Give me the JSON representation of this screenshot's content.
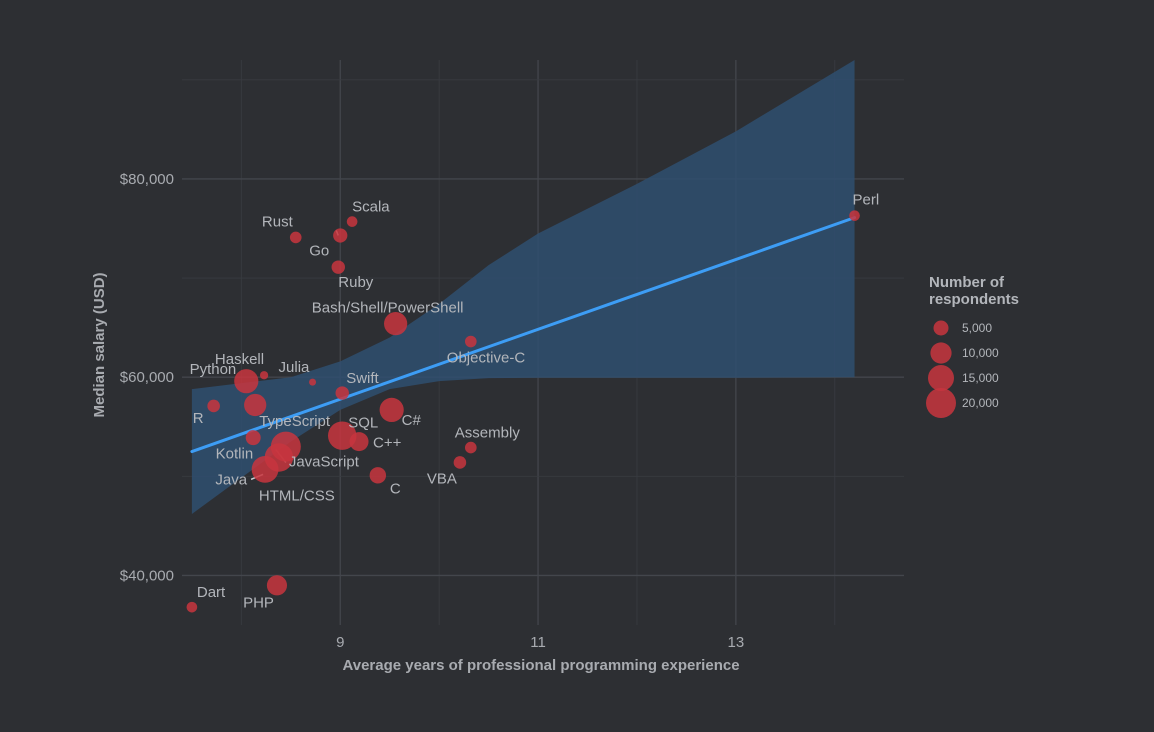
{
  "chart_data": {
    "type": "scatter",
    "title": "",
    "xlabel": "Average years of professional programming experience",
    "ylabel": "Median salary (USD)",
    "xlim": [
      7.4,
      14.7
    ],
    "ylim": [
      35000,
      92000
    ],
    "x_ticks": [
      9,
      11,
      13
    ],
    "x_tick_labels": [
      "9",
      "11",
      "13"
    ],
    "y_ticks": [
      40000,
      60000,
      80000
    ],
    "y_tick_labels": [
      "$40,000",
      "$60,000",
      "$80,000"
    ],
    "grid": true,
    "legend_position": "right",
    "legend": {
      "title": "Number of respondents",
      "entries": [
        {
          "label": "5,000",
          "value": 5000
        },
        {
          "label": "10,000",
          "value": 10000
        },
        {
          "label": "15,000",
          "value": 15000
        },
        {
          "label": "20,000",
          "value": 20000
        }
      ]
    },
    "colors": {
      "point": "#c8353e",
      "trend_line": "#3d9df5",
      "confidence_band": "#2f4f70",
      "background": "#2d2f33",
      "text": "#a8abb0"
    },
    "points": [
      {
        "label": "Perl",
        "x": 14.2,
        "y": 76300,
        "respondents": 2500
      },
      {
        "label": "Scala",
        "x": 9.12,
        "y": 75700,
        "respondents": 2500
      },
      {
        "label": "Go",
        "x": 9.0,
        "y": 74300,
        "respondents": 4500
      },
      {
        "label": "Rust",
        "x": 8.55,
        "y": 74100,
        "respondents": 3000
      },
      {
        "label": "Ruby",
        "x": 8.98,
        "y": 71100,
        "respondents": 4000
      },
      {
        "label": "Bash/Shell/PowerShell",
        "x": 9.56,
        "y": 65400,
        "respondents": 12000
      },
      {
        "label": "Objective-C",
        "x": 10.32,
        "y": 63600,
        "respondents": 3000
      },
      {
        "label": "Haskell",
        "x": 8.23,
        "y": 60200,
        "respondents": 1500
      },
      {
        "label": "Julia",
        "x": 8.72,
        "y": 59500,
        "respondents": 800
      },
      {
        "label": "Swift",
        "x": 9.02,
        "y": 58400,
        "respondents": 4000
      },
      {
        "label": "Python",
        "x": 8.05,
        "y": 59600,
        "respondents": 13000
      },
      {
        "label": "R",
        "x": 7.72,
        "y": 57100,
        "respondents": 3500
      },
      {
        "label": "TypeScript",
        "x": 8.14,
        "y": 57200,
        "respondents": 11000
      },
      {
        "label": "C#",
        "x": 9.52,
        "y": 56700,
        "respondents": 13000
      },
      {
        "label": "SQL",
        "x": 9.02,
        "y": 54100,
        "respondents": 18000
      },
      {
        "label": "C++",
        "x": 9.19,
        "y": 53500,
        "respondents": 8000
      },
      {
        "label": "Assembly",
        "x": 10.32,
        "y": 52900,
        "respondents": 3000
      },
      {
        "label": "Kotlin",
        "x": 8.12,
        "y": 53900,
        "respondents": 5000
      },
      {
        "label": "JavaScript",
        "x": 8.45,
        "y": 53000,
        "respondents": 20000
      },
      {
        "label": "HTML/CSS",
        "x": 8.38,
        "y": 51900,
        "respondents": 18000
      },
      {
        "label": "Java",
        "x": 8.24,
        "y": 50700,
        "respondents": 16000
      },
      {
        "label": "VBA",
        "x": 10.21,
        "y": 51400,
        "respondents": 3500
      },
      {
        "label": "C",
        "x": 9.38,
        "y": 50100,
        "respondents": 6000
      },
      {
        "label": "PHP",
        "x": 8.36,
        "y": 39000,
        "respondents": 9000
      },
      {
        "label": "Dart",
        "x": 7.5,
        "y": 36800,
        "respondents": 2500
      }
    ],
    "trend_line": [
      {
        "x": 7.5,
        "y": 52500
      },
      {
        "x": 14.2,
        "y": 76100
      }
    ],
    "confidence_band": [
      {
        "x": 7.5,
        "lower": 46200,
        "upper": 58800
      },
      {
        "x": 8.5,
        "lower": 53500,
        "upper": 60000
      },
      {
        "x": 9.0,
        "lower": 56700,
        "upper": 61600
      },
      {
        "x": 9.5,
        "lower": 58800,
        "upper": 64000
      },
      {
        "x": 10.0,
        "lower": 59600,
        "upper": 67400
      },
      {
        "x": 10.5,
        "lower": 59900,
        "upper": 71300
      },
      {
        "x": 11.0,
        "lower": 59950,
        "upper": 74500
      },
      {
        "x": 12.0,
        "lower": 59950,
        "upper": 79500
      },
      {
        "x": 13.0,
        "lower": 59950,
        "upper": 84800
      },
      {
        "x": 14.2,
        "lower": 60000,
        "upper": 92000
      }
    ]
  }
}
